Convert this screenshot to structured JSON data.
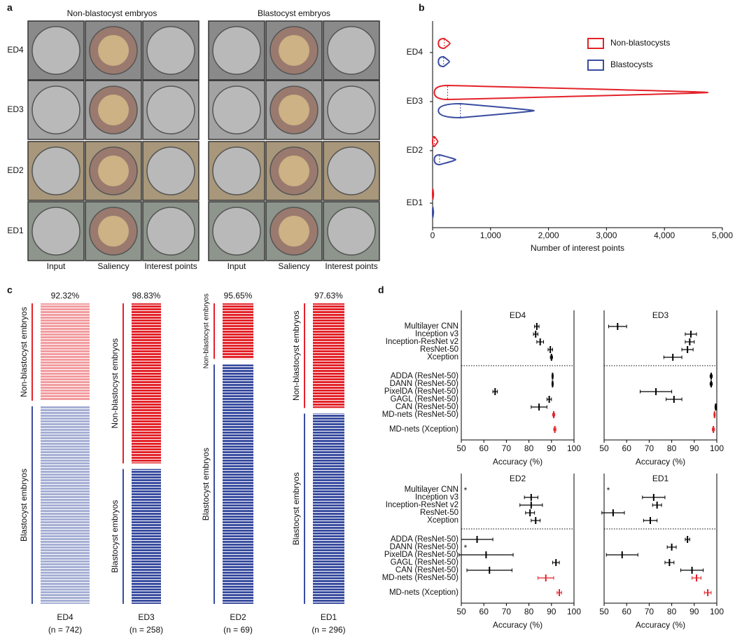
{
  "panel_a": {
    "letter": "a",
    "groups": [
      "Non-blastocyst embryos",
      "Blastocyst embryos"
    ],
    "rows": [
      "ED4",
      "ED3",
      "ED2",
      "ED1"
    ],
    "columns": [
      "Input",
      "Saliency",
      "Interest points",
      "Input",
      "Saliency",
      "Interest points"
    ]
  },
  "chart_data": [
    {
      "type": "violin",
      "letter": "b",
      "categories": [
        "ED4",
        "ED3",
        "ED2",
        "ED1"
      ],
      "xlabel": "Number of interest points",
      "xlim": [
        0,
        5000
      ],
      "xticks": [
        0,
        {
          "value": 1000,
          "label": "1,000"
        },
        {
          "value": 2000,
          "label": "2,000"
        },
        {
          "value": 3000,
          "label": "3,000"
        },
        {
          "value": 4000,
          "label": "4,000"
        },
        {
          "value": 5000,
          "label": "5,000"
        }
      ],
      "legend": "upper right",
      "series": [
        {
          "name": "Non-blastocysts",
          "color": "#e32229",
          "min": [
            100,
            30,
            0,
            0
          ],
          "median": [
            200,
            260,
            30,
            5
          ],
          "max": [
            300,
            4750,
            90,
            15
          ]
        },
        {
          "name": "Blastocysts",
          "color": "#3a4da0",
          "min": [
            100,
            100,
            30,
            0
          ],
          "median": [
            190,
            480,
            120,
            5
          ],
          "max": [
            290,
            1750,
            400,
            15
          ]
        }
      ]
    },
    {
      "type": "stripes",
      "letter": "c",
      "groups": [
        {
          "name": "Non-blastocyst embryos",
          "color": "#e32229"
        },
        {
          "name": "Blastocyst embryos",
          "color": "#3a4da0"
        }
      ],
      "panels": [
        {
          "label": "ED4",
          "n_label": "(n = 742)",
          "value": 92.32,
          "value_label": "92.32%",
          "counts": [
            245,
            497
          ]
        },
        {
          "label": "ED3",
          "n_label": "(n = 258)",
          "value": 98.83,
          "value_label": "98.83%",
          "counts": [
            140,
            118
          ]
        },
        {
          "label": "ED2",
          "n_label": "(n = 69)",
          "value": 95.65,
          "value_label": "95.65%",
          "counts": [
            13,
            56
          ]
        },
        {
          "label": "ED1",
          "n_label": "(n = 296)",
          "value": 97.63,
          "value_label": "97.63%",
          "counts": [
            105,
            191
          ]
        }
      ]
    },
    {
      "type": "dot",
      "letter": "d",
      "categories": [
        "Multilayer CNN",
        "Inception v3",
        "Inception-ResNet v2",
        "ResNet-50",
        "Xception",
        "ADDA (ResNet-50)",
        "DANN (ResNet-50)",
        "PixelDA (ResNet-50)",
        "GAGL (ResNet-50)",
        "CAN (ResNet-50)",
        "MD-nets (ResNet-50)",
        "MD-nets (Xception)"
      ],
      "point_colors": [
        "#000000",
        "#000000",
        "#000000",
        "#000000",
        "#000000",
        "#000000",
        "#000000",
        "#000000",
        "#000000",
        "#000000",
        "#e32229",
        "#e32229"
      ],
      "xlim": [
        50,
        100
      ],
      "xticks": [
        50,
        60,
        70,
        80,
        90,
        100
      ],
      "xlabel": "Accuracy (%)",
      "panels": [
        {
          "title": "ED4",
          "values": [
            83.5,
            83,
            85,
            89.5,
            90,
            90.5,
            90.5,
            65,
            89,
            84.5,
            91,
            91.5
          ],
          "errors": [
            1,
            1,
            1.5,
            1,
            0.5,
            0.3,
            0.3,
            1,
            1,
            3.5,
            0.5,
            0.5
          ]
        },
        {
          "title": "ED3",
          "values": [
            56,
            88.5,
            88,
            87,
            80.5,
            97.5,
            97.5,
            73,
            81,
            99.5,
            99,
            98.5
          ],
          "errors": [
            4,
            2.5,
            2,
            2.5,
            4,
            0.5,
            0.5,
            7,
            3.5,
            0.3,
            0.3,
            0.5
          ]
        },
        {
          "title": "ED2",
          "values": [
            null,
            81,
            81,
            80.5,
            83,
            57,
            null,
            61,
            92,
            62.5,
            87.5,
            93.5
          ],
          "errors": [
            null,
            3,
            5,
            2,
            2,
            7,
            null,
            12,
            1.5,
            10,
            3.5,
            1
          ],
          "value_labels": [
            "*",
            null,
            null,
            null,
            null,
            null,
            "*",
            null,
            null,
            null,
            null,
            null
          ]
        },
        {
          "title": "ED1",
          "values": [
            null,
            72,
            73.5,
            54,
            70.5,
            87,
            80,
            58,
            79,
            89,
            91,
            96
          ],
          "errors": [
            null,
            5,
            2,
            5,
            3,
            1,
            2,
            7,
            2,
            5,
            2,
            1.5
          ],
          "value_labels": [
            "*",
            null,
            null,
            null,
            null,
            null,
            null,
            null,
            null,
            null,
            null,
            null
          ]
        }
      ]
    }
  ]
}
